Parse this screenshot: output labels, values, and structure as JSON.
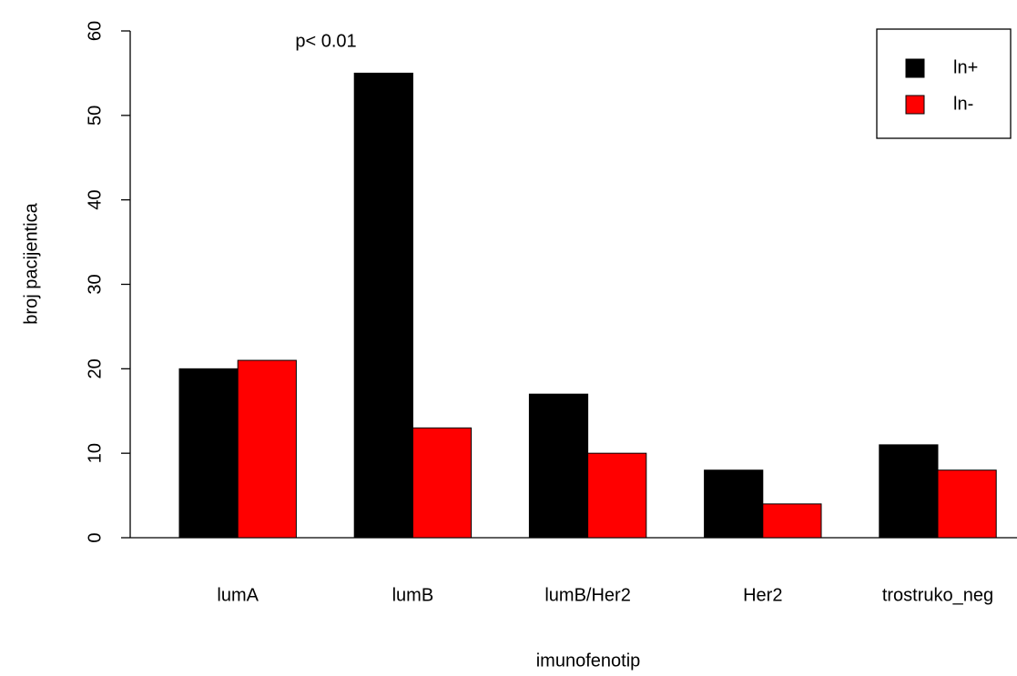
{
  "chart_data": {
    "type": "bar",
    "categories": [
      "lumA",
      "lumB",
      "lumB/Her2",
      "Her2",
      "trostruko_neg"
    ],
    "series": [
      {
        "name": "ln+",
        "color": "#000000",
        "values": [
          20,
          55,
          17,
          8,
          11
        ]
      },
      {
        "name": "ln-",
        "color": "#ff0000",
        "values": [
          21,
          13,
          10,
          4,
          8
        ]
      }
    ],
    "xlabel": "imunofenotip",
    "ylabel": "broj pacijentica",
    "annotation": "p< 0.01",
    "ylim": [
      0,
      60
    ],
    "yticks": [
      0,
      10,
      20,
      30,
      40,
      50,
      60
    ],
    "legend": "topright",
    "grid": false
  }
}
